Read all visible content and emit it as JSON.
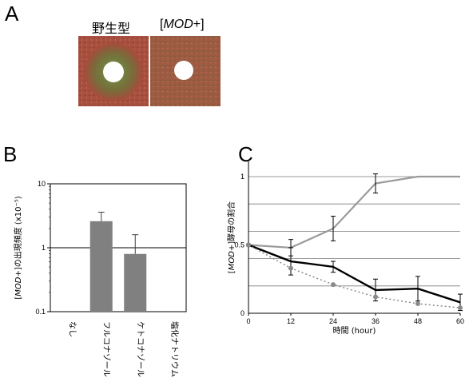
{
  "panels": {
    "a": {
      "letter": "A",
      "plate_labels": {
        "wild_type": "野生型",
        "mod_prefix": "[",
        "mod_italic": "MOD",
        "mod_suffix": "+]"
      }
    },
    "b": {
      "letter": "B",
      "ylabel_prefix": "[",
      "ylabel_italic": "MOD",
      "ylabel_suffix": "+]の出現頻度 (x10⁻⁵)"
    },
    "c": {
      "letter": "C",
      "ylabel_prefix": "[",
      "ylabel_italic": "MOD",
      "ylabel_suffix": "+]酵母の割合"
    }
  },
  "colors": {
    "bar": "#808080",
    "series_gray": "#9a9a9a",
    "series_black": "#000000",
    "series_dotted": "#8a8a8a",
    "plate_wt_bg": "#a64c3c",
    "plate_wt_halo": "#6b7a3c",
    "plate_mod_bg": "#9b5a40"
  },
  "chart_data": [
    {
      "type": "bar",
      "panel": "B",
      "categories": [
        "なし",
        "フルコナゾール",
        "ケトコナゾール",
        "塩化ナトリウム"
      ],
      "values": [
        null,
        2.6,
        0.8,
        null
      ],
      "error_upper": [
        null,
        3.6,
        1.6,
        null
      ],
      "yscale": "log",
      "ylim": [
        0.1,
        10
      ],
      "yticks": [
        "0.1",
        "1",
        "10"
      ],
      "ytick_values": [
        0.1,
        1,
        10
      ],
      "reference_line": 1,
      "grid": false
    },
    {
      "type": "line",
      "panel": "C",
      "xlabel": "時間 (hour)",
      "x": [
        0,
        12,
        24,
        36,
        48,
        60
      ],
      "xticks": [
        "0",
        "12",
        "24",
        "36",
        "48",
        "60"
      ],
      "ylim": [
        0,
        1
      ],
      "yticks": [
        "0",
        "0.5",
        "1"
      ],
      "ytick_values": [
        0,
        0.5,
        1
      ],
      "grid": true,
      "gridlines": [
        0.2,
        0.4,
        0.6,
        0.8,
        1.0
      ],
      "series": [
        {
          "style": "solid-gray",
          "values": [
            0.5,
            0.48,
            0.62,
            0.95,
            1.0,
            1.0
          ],
          "errors": [
            0,
            0.06,
            0.09,
            0.07,
            0,
            0
          ]
        },
        {
          "style": "solid-black",
          "values": [
            0.5,
            0.38,
            0.34,
            0.17,
            0.18,
            0.08
          ],
          "errors": [
            0,
            0.1,
            0.04,
            0.08,
            0.09,
            0.06
          ]
        },
        {
          "style": "dotted-gray",
          "values": [
            0.5,
            0.33,
            0.21,
            0.12,
            0.07,
            0.04
          ],
          "errors": [
            0,
            0,
            0,
            0,
            0,
            0
          ]
        }
      ]
    }
  ]
}
